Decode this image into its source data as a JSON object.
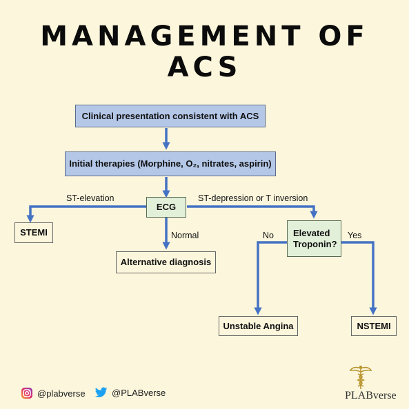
{
  "title": {
    "line1": "MANAGEMENT OF",
    "line2": "ACS"
  },
  "boxes": {
    "clinical": "Clinical presentation consistent with ACS",
    "initial": "Initial therapies (Morphine, O₂, nitrates, aspirin)",
    "ecg": "ECG",
    "stemi": "STEMI",
    "alt": "Alternative diagnosis",
    "troponin_line1": "Elevated",
    "troponin_line2": "Troponin?",
    "unstable": "Unstable Angina",
    "nstemi": "NSTEMI"
  },
  "labels": {
    "st_elevation": "ST-elevation",
    "st_depression": "ST-depression or T inversion",
    "normal": "Normal",
    "no": "No",
    "yes": "Yes"
  },
  "footer": {
    "instagram": "@plabverse",
    "twitter": "@PLABverse",
    "brand": "PLABverse"
  },
  "colors": {
    "arrow": "#4472c4",
    "blue_box": "#b4c7e7",
    "green_box": "#e2efd9",
    "background": "#fbf6dc"
  },
  "icons": [
    "instagram-icon",
    "twitter-icon",
    "caduceus-icon"
  ]
}
